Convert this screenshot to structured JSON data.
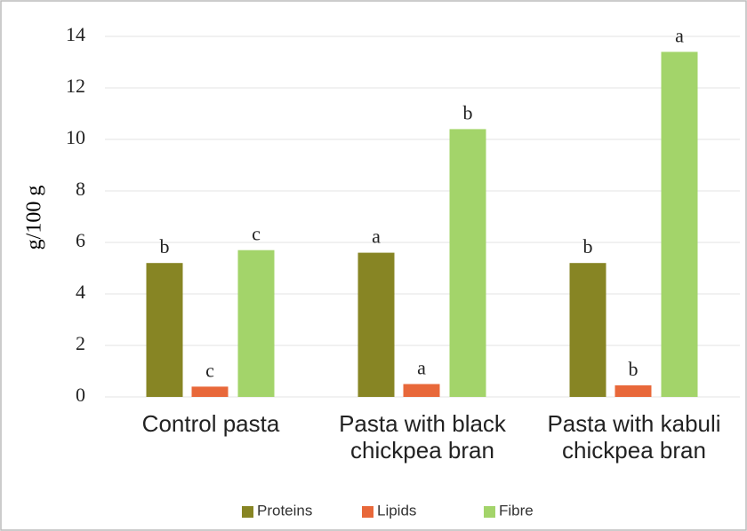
{
  "chart_data": {
    "type": "bar",
    "ylabel": "g/100 g",
    "categories": [
      "Control pasta",
      "Pasta with black chickpea bran",
      "Pasta with kabuli chickpea bran"
    ],
    "series": [
      {
        "name": "Proteins",
        "color": "#878524",
        "values": [
          5.2,
          5.6,
          5.2
        ],
        "annotations": [
          "b",
          "a",
          "b"
        ]
      },
      {
        "name": "Lipids",
        "color": "#e8683a",
        "values": [
          0.4,
          0.5,
          0.45
        ],
        "annotations": [
          "c",
          "a",
          "b"
        ]
      },
      {
        "name": "Fibre",
        "color": "#a3d46a",
        "values": [
          5.7,
          10.4,
          13.4
        ],
        "annotations": [
          "c",
          "b",
          "a"
        ]
      }
    ],
    "ylim": [
      0,
      14
    ],
    "yticks": [
      0,
      2,
      4,
      6,
      8,
      10,
      12,
      14
    ],
    "grid": true,
    "legend": "bottom"
  }
}
